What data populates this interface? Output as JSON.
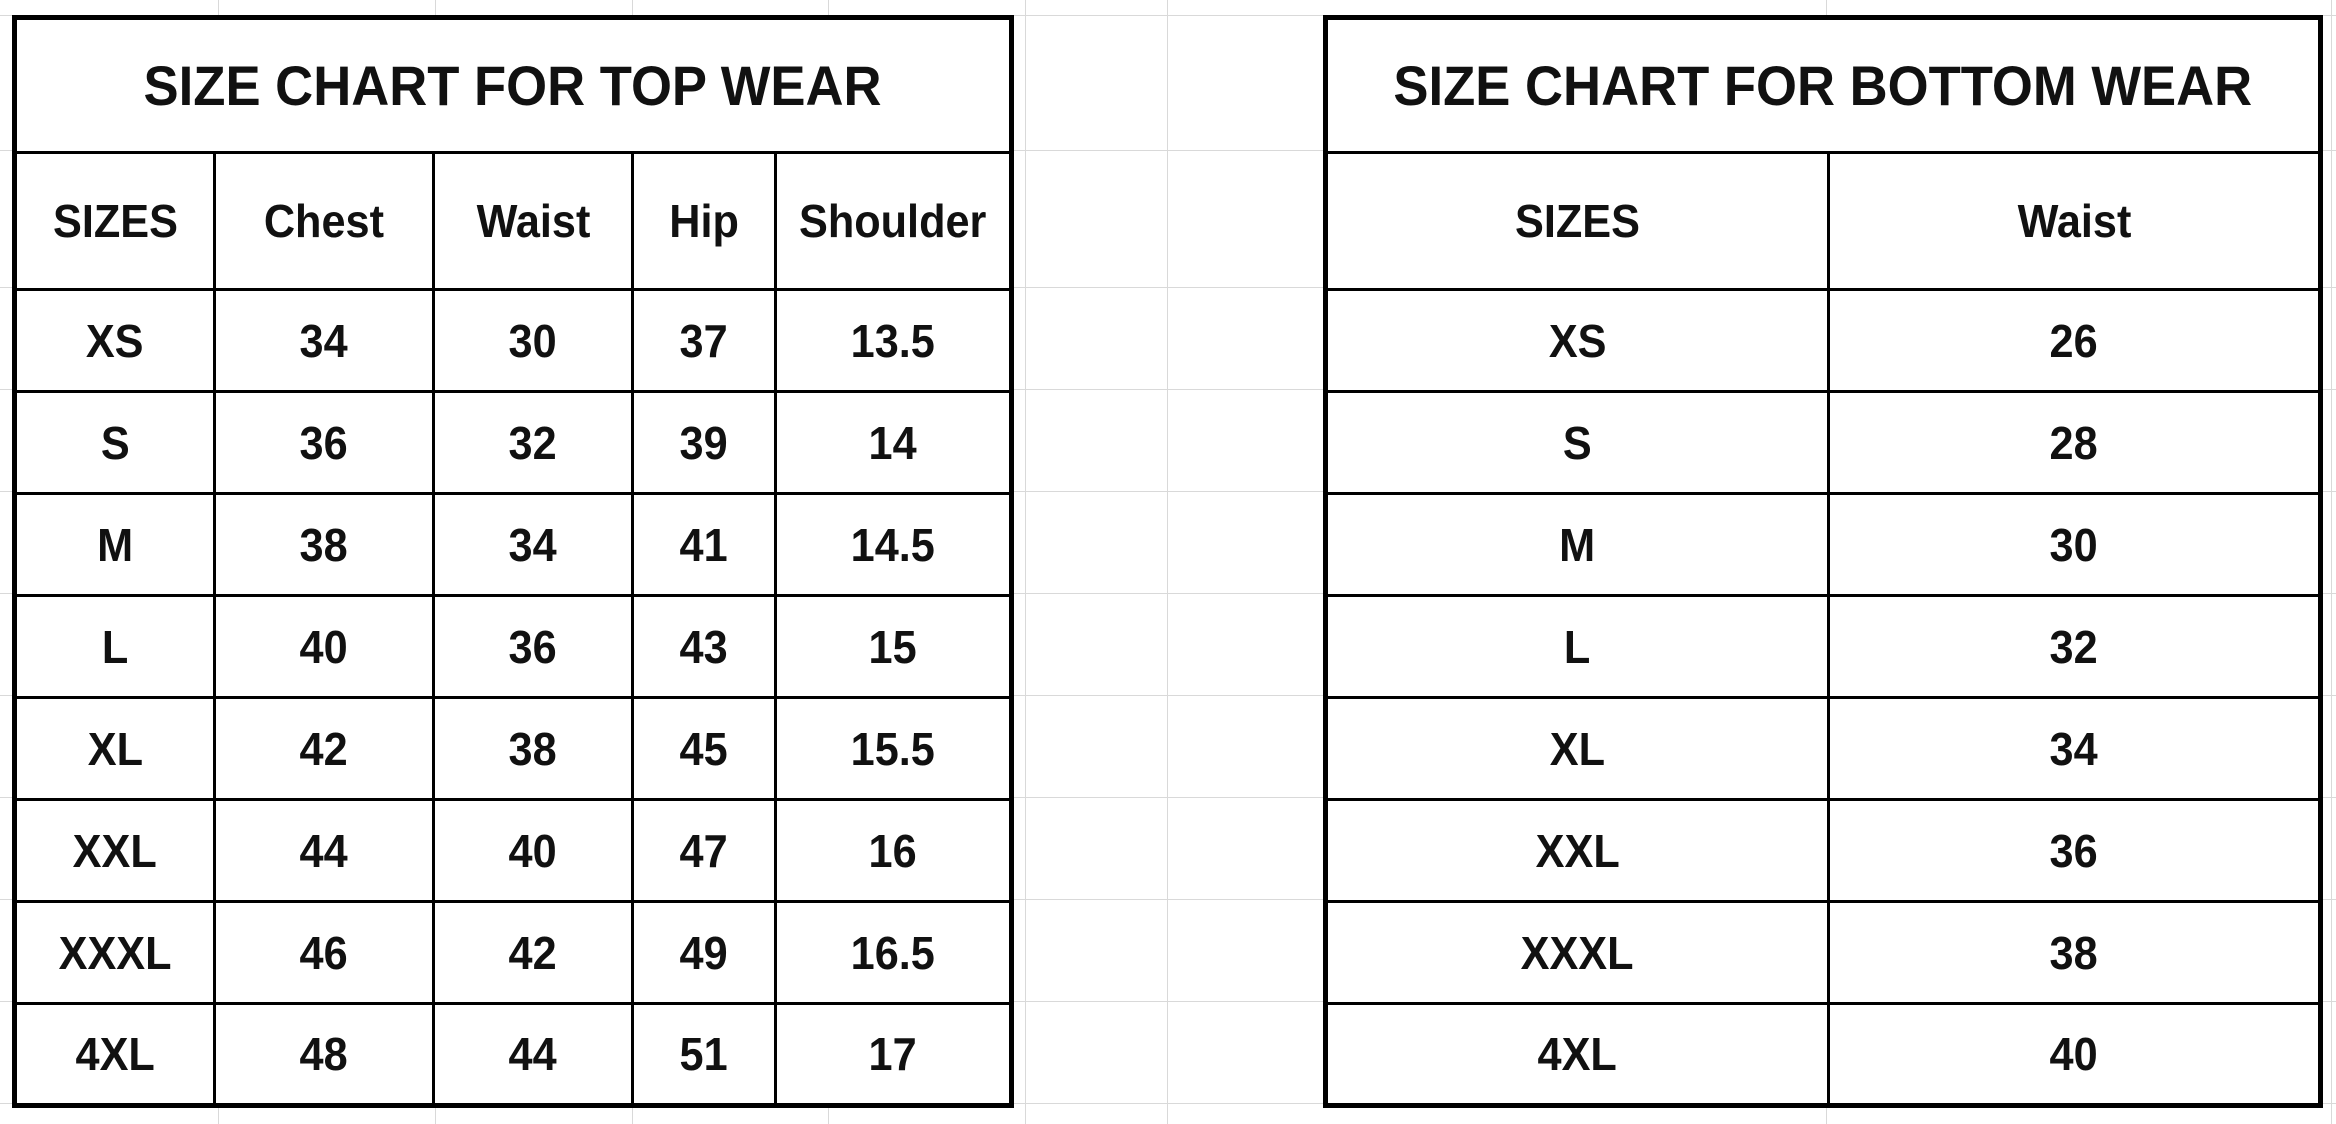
{
  "chart_data": [
    {
      "type": "table",
      "title": "SIZE CHART FOR TOP WEAR",
      "columns": [
        "SIZES",
        "Chest",
        "Waist",
        "Hip",
        "Shoulder"
      ],
      "rows": [
        [
          "XS",
          "34",
          "30",
          "37",
          "13.5"
        ],
        [
          "S",
          "36",
          "32",
          "39",
          "14"
        ],
        [
          "M",
          "38",
          "34",
          "41",
          "14.5"
        ],
        [
          "L",
          "40",
          "36",
          "43",
          "15"
        ],
        [
          "XL",
          "42",
          "38",
          "45",
          "15.5"
        ],
        [
          "XXL",
          "44",
          "40",
          "47",
          "16"
        ],
        [
          "XXXL",
          "46",
          "42",
          "49",
          "16.5"
        ],
        [
          "4XL",
          "48",
          "44",
          "51",
          "17"
        ]
      ]
    },
    {
      "type": "table",
      "title": "SIZE CHART FOR BOTTOM WEAR",
      "columns": [
        "SIZES",
        "Waist"
      ],
      "rows": [
        [
          "XS",
          "26"
        ],
        [
          "S",
          "28"
        ],
        [
          "M",
          "30"
        ],
        [
          "L",
          "32"
        ],
        [
          "XL",
          "34"
        ],
        [
          "XXL",
          "36"
        ],
        [
          "XXXL",
          "38"
        ],
        [
          "4XL",
          "40"
        ]
      ]
    }
  ],
  "colors": {
    "table_border": "#000000",
    "text": "#111111",
    "sheet_gridline": "#d9d9d9",
    "background": "#ffffff"
  }
}
